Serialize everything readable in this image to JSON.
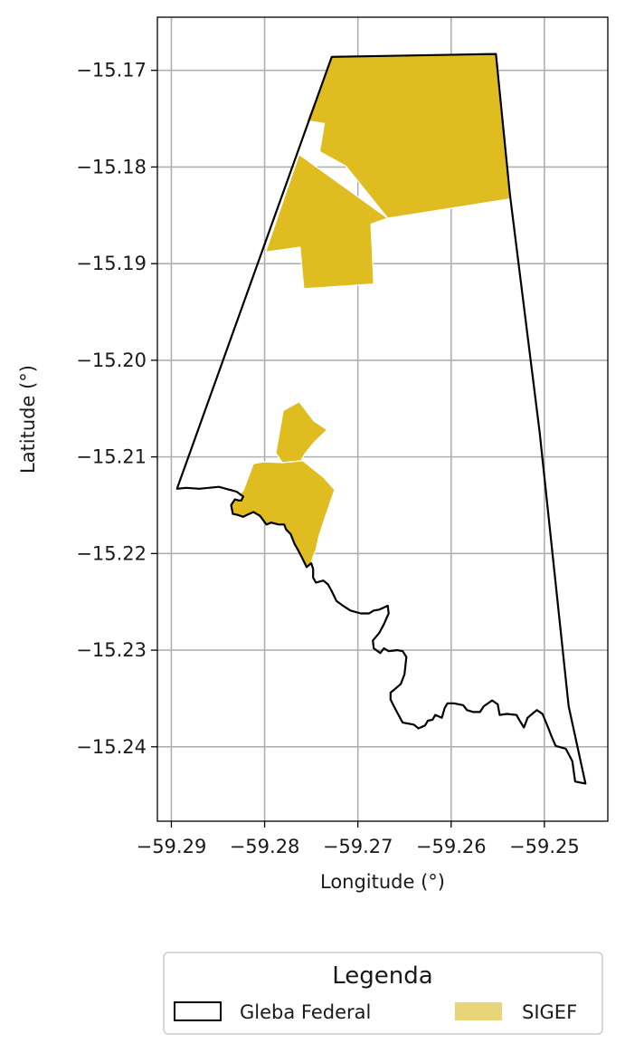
{
  "chart_data": {
    "type": "map",
    "xlabel": "Longitude (°)",
    "ylabel": "Latitude (°)",
    "xlim": [
      -59.2915,
      -59.2432
    ],
    "ylim": [
      -15.2477,
      -15.1645
    ],
    "x_ticks": [
      {
        "value": -59.29,
        "label": "−59.29"
      },
      {
        "value": -59.28,
        "label": "−59.28"
      },
      {
        "value": -59.27,
        "label": "−59.27"
      },
      {
        "value": -59.26,
        "label": "−59.26"
      },
      {
        "value": -59.25,
        "label": "−59.25"
      }
    ],
    "y_ticks": [
      {
        "value": -15.17,
        "label": "−15.17"
      },
      {
        "value": -15.18,
        "label": "−15.18"
      },
      {
        "value": -15.19,
        "label": "−15.19"
      },
      {
        "value": -15.2,
        "label": "−15.20"
      },
      {
        "value": -15.21,
        "label": "−15.21"
      },
      {
        "value": -15.22,
        "label": "−15.22"
      },
      {
        "value": -15.23,
        "label": "−15.23"
      },
      {
        "value": -15.24,
        "label": "−15.24"
      }
    ],
    "grid": true,
    "legend": {
      "title": "Legenda",
      "placement": "bottom-center",
      "entries": [
        {
          "label": "Gleba Federal",
          "style": "outline",
          "color": "#000000"
        },
        {
          "label": "SIGEF",
          "style": "fill",
          "color": "#e8d57a"
        }
      ]
    },
    "layers": [
      {
        "name": "Gleba Federal",
        "type": "polygon-outline",
        "color": "#000000",
        "coordinates": [
          [
            -59.2728,
            -15.1686
          ],
          [
            -59.2552,
            -15.1683
          ],
          [
            -59.2537,
            -15.1828
          ],
          [
            -59.2505,
            -15.2075
          ],
          [
            -59.2474,
            -15.2358
          ],
          [
            -59.2456,
            -15.2438
          ],
          [
            -59.2467,
            -15.2436
          ],
          [
            -59.247,
            -15.2415
          ],
          [
            -59.2477,
            -15.2402
          ],
          [
            -59.2488,
            -15.2399
          ],
          [
            -59.2492,
            -15.239
          ],
          [
            -59.2496,
            -15.238
          ],
          [
            -59.2502,
            -15.2366
          ],
          [
            -59.2508,
            -15.2362
          ],
          [
            -59.2512,
            -15.2365
          ],
          [
            -59.2518,
            -15.237
          ],
          [
            -59.2522,
            -15.238
          ],
          [
            -59.2527,
            -15.2372
          ],
          [
            -59.253,
            -15.2367
          ],
          [
            -59.254,
            -15.2366
          ],
          [
            -59.2548,
            -15.2367
          ],
          [
            -59.255,
            -15.2356
          ],
          [
            -59.2556,
            -15.2352
          ],
          [
            -59.2565,
            -15.2358
          ],
          [
            -59.2569,
            -15.2364
          ],
          [
            -59.2576,
            -15.2364
          ],
          [
            -59.2583,
            -15.2362
          ],
          [
            -59.2587,
            -15.2357
          ],
          [
            -59.2597,
            -15.2355
          ],
          [
            -59.2604,
            -15.2355
          ],
          [
            -59.2607,
            -15.236
          ],
          [
            -59.261,
            -15.237
          ],
          [
            -59.2617,
            -15.2367
          ],
          [
            -59.262,
            -15.2372
          ],
          [
            -59.2625,
            -15.2373
          ],
          [
            -59.2628,
            -15.2378
          ],
          [
            -59.2635,
            -15.2381
          ],
          [
            -59.264,
            -15.2377
          ],
          [
            -59.2652,
            -15.2375
          ],
          [
            -59.2657,
            -15.2366
          ],
          [
            -59.2662,
            -15.2357
          ],
          [
            -59.2665,
            -15.2351
          ],
          [
            -59.2665,
            -15.2344
          ],
          [
            -59.266,
            -15.234
          ],
          [
            -59.2654,
            -15.2335
          ],
          [
            -59.265,
            -15.2325
          ],
          [
            -59.2648,
            -15.2307
          ],
          [
            -59.2652,
            -15.2301
          ],
          [
            -59.2658,
            -15.23
          ],
          [
            -59.2667,
            -15.2301
          ],
          [
            -59.2672,
            -15.2298
          ],
          [
            -59.2676,
            -15.2303
          ],
          [
            -59.2683,
            -15.2298
          ],
          [
            -59.2684,
            -15.229
          ],
          [
            -59.2677,
            -15.2282
          ],
          [
            -59.2672,
            -15.2273
          ],
          [
            -59.2667,
            -15.2262
          ],
          [
            -59.2668,
            -15.2254
          ],
          [
            -59.2677,
            -15.2258
          ],
          [
            -59.2683,
            -15.2259
          ],
          [
            -59.2688,
            -15.2262
          ],
          [
            -59.2697,
            -15.2262
          ],
          [
            -59.2708,
            -15.2259
          ],
          [
            -59.2716,
            -15.2254
          ],
          [
            -59.2723,
            -15.2249
          ],
          [
            -59.2728,
            -15.2239
          ],
          [
            -59.2732,
            -15.2232
          ],
          [
            -59.2737,
            -15.2228
          ],
          [
            -59.2745,
            -15.223
          ],
          [
            -59.2748,
            -15.2225
          ],
          [
            -59.2748,
            -15.2216
          ],
          [
            -59.275,
            -15.221
          ],
          [
            -59.2755,
            -15.2214
          ],
          [
            -59.276,
            -15.2204
          ],
          [
            -59.2765,
            -15.2195
          ],
          [
            -59.2768,
            -15.219
          ],
          [
            -59.2772,
            -15.218
          ],
          [
            -59.2777,
            -15.2175
          ],
          [
            -59.2779,
            -15.217
          ],
          [
            -59.2785,
            -15.217
          ],
          [
            -59.2793,
            -15.2168
          ],
          [
            -59.2798,
            -15.217
          ],
          [
            -59.2805,
            -15.2161
          ],
          [
            -59.2812,
            -15.2157
          ],
          [
            -59.2819,
            -15.216
          ],
          [
            -59.2823,
            -15.2162
          ],
          [
            -59.2829,
            -15.216
          ],
          [
            -59.2834,
            -15.2159
          ],
          [
            -59.2836,
            -15.215
          ],
          [
            -59.2832,
            -15.2144
          ],
          [
            -59.2828,
            -15.2145
          ],
          [
            -59.2825,
            -15.2145
          ],
          [
            -59.2823,
            -15.2141
          ],
          [
            -59.283,
            -15.2136
          ],
          [
            -59.2849,
            -15.2131
          ],
          [
            -59.286,
            -15.2132
          ],
          [
            -59.287,
            -15.2133
          ],
          [
            -59.2884,
            -15.2132
          ],
          [
            -59.2894,
            -15.2133
          ],
          [
            -59.2728,
            -15.1686
          ]
        ]
      },
      {
        "name": "SIGEF",
        "type": "polygon-fill",
        "color": "#dfbc20",
        "parcels": [
          [
            [
              -59.2728,
              -15.1686
            ],
            [
              -59.2552,
              -15.1683
            ],
            [
              -59.2537,
              -15.1833
            ],
            [
              -59.2668,
              -15.1853
            ],
            [
              -59.2713,
              -15.1799
            ],
            [
              -59.2741,
              -15.1784
            ],
            [
              -59.2736,
              -15.1755
            ],
            [
              -59.2755,
              -15.1752
            ]
          ],
          [
            [
              -59.2763,
              -15.1787
            ],
            [
              -59.2668,
              -15.1853
            ],
            [
              -59.2686,
              -15.1859
            ],
            [
              -59.2683,
              -15.1921
            ],
            [
              -59.2758,
              -15.1926
            ],
            [
              -59.2762,
              -15.1883
            ],
            [
              -59.2799,
              -15.1888
            ]
          ],
          [
            [
              -59.278,
              -15.2052
            ],
            [
              -59.2763,
              -15.2043
            ],
            [
              -59.2747,
              -15.2063
            ],
            [
              -59.2733,
              -15.2072
            ],
            [
              -59.2746,
              -15.2084
            ],
            [
              -59.2757,
              -15.2097
            ],
            [
              -59.2761,
              -15.2104
            ],
            [
              -59.2781,
              -15.2106
            ],
            [
              -59.2788,
              -15.2096
            ]
          ],
          [
            [
              -59.2759,
              -15.2104
            ],
            [
              -59.2781,
              -15.2106
            ],
            [
              -59.2801,
              -15.2105
            ],
            [
              -59.2812,
              -15.2107
            ],
            [
              -59.2823,
              -15.2135
            ],
            [
              -59.2829,
              -15.2141
            ],
            [
              -59.2823,
              -15.2141
            ],
            [
              -59.2825,
              -15.2145
            ],
            [
              -59.2828,
              -15.2145
            ],
            [
              -59.2832,
              -15.2144
            ],
            [
              -59.2836,
              -15.215
            ],
            [
              -59.2834,
              -15.2159
            ],
            [
              -59.2829,
              -15.216
            ],
            [
              -59.2823,
              -15.2162
            ],
            [
              -59.2819,
              -15.216
            ],
            [
              -59.2812,
              -15.2157
            ],
            [
              -59.2805,
              -15.2161
            ],
            [
              -59.2798,
              -15.217
            ],
            [
              -59.2793,
              -15.2168
            ],
            [
              -59.2785,
              -15.217
            ],
            [
              -59.2779,
              -15.217
            ],
            [
              -59.2777,
              -15.2175
            ],
            [
              -59.2772,
              -15.218
            ],
            [
              -59.2768,
              -15.219
            ],
            [
              -59.2765,
              -15.2195
            ],
            [
              -59.276,
              -15.2204
            ],
            [
              -59.2755,
              -15.2214
            ],
            [
              -59.275,
              -15.221
            ],
            [
              -59.2748,
              -15.2203
            ],
            [
              -59.2745,
              -15.2196
            ],
            [
              -59.2742,
              -15.2183
            ],
            [
              -59.2737,
              -15.2168
            ],
            [
              -59.2725,
              -15.2134
            ],
            [
              -59.2737,
              -15.2121
            ]
          ]
        ]
      }
    ]
  }
}
